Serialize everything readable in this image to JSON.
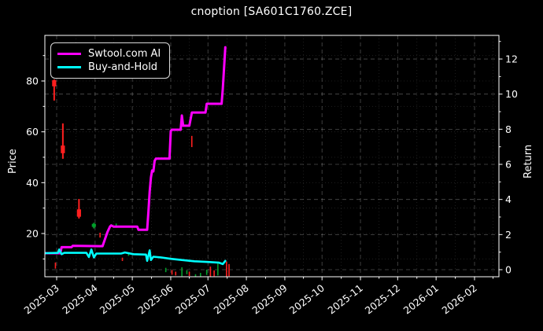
{
  "chart_data": {
    "type": "line",
    "title": "cnoption [SA601C1760.ZCE]",
    "background": "#000000",
    "text_color": "#ffffff",
    "grid": "both",
    "legend": {
      "position": "upper-left"
    },
    "x_axis": {
      "tick_labels": [
        "2025-03",
        "2025-04",
        "2025-05",
        "2025-06",
        "2025-07",
        "2025-08",
        "2025-09",
        "2025-10",
        "2025-11",
        "2025-12",
        "2026-01",
        "2026-02"
      ],
      "range": [
        "2025-02-19",
        "2026-02-19"
      ]
    },
    "y_axis_left": {
      "label": "Price",
      "ticks": [
        20,
        40,
        60,
        80
      ],
      "minor_ticks": [
        10,
        30,
        50,
        70,
        90
      ],
      "range": [
        3,
        98
      ]
    },
    "y_axis_right": {
      "label": "Return",
      "ticks": [
        0,
        2,
        4,
        6,
        8,
        10,
        12
      ],
      "minor_ticks": [
        1,
        3,
        5,
        7,
        9,
        11,
        13
      ],
      "range": [
        -0.4,
        13.34
      ]
    },
    "series": [
      {
        "name": "Swtool.com AI",
        "color": "#ff00ff",
        "axis": "right",
        "linewidth": 3,
        "points": [
          [
            "2025-02-20",
            0.94
          ],
          [
            "2025-03-04",
            0.94
          ],
          [
            "2025-03-05",
            1.28
          ],
          [
            "2025-03-13",
            1.28
          ],
          [
            "2025-03-14",
            1.36
          ],
          [
            "2025-04-07",
            1.34
          ],
          [
            "2025-04-09",
            1.75
          ],
          [
            "2025-04-11",
            2.15
          ],
          [
            "2025-04-13",
            2.46
          ],
          [
            "2025-04-14",
            2.52
          ],
          [
            "2025-04-16",
            2.45
          ],
          [
            "2025-05-05",
            2.45
          ],
          [
            "2025-05-06",
            2.27
          ],
          [
            "2025-05-13",
            2.27
          ],
          [
            "2025-05-14",
            3.3
          ],
          [
            "2025-05-15",
            4.45
          ],
          [
            "2025-05-16",
            5.25
          ],
          [
            "2025-05-17",
            5.65
          ],
          [
            "2025-05-18",
            5.6
          ],
          [
            "2025-05-19",
            6.2
          ],
          [
            "2025-05-20",
            6.33
          ],
          [
            "2025-05-31",
            6.33
          ],
          [
            "2025-06-01",
            7.9
          ],
          [
            "2025-06-02",
            7.97
          ],
          [
            "2025-06-09",
            7.97
          ],
          [
            "2025-06-10",
            8.78
          ],
          [
            "2025-06-11",
            8.2
          ],
          [
            "2025-06-16",
            8.2
          ],
          [
            "2025-06-18",
            8.95
          ],
          [
            "2025-06-29",
            8.95
          ],
          [
            "2025-06-30",
            9.45
          ],
          [
            "2025-07-12",
            9.45
          ],
          [
            "2025-07-13",
            10.3
          ],
          [
            "2025-07-15",
            12.67
          ]
        ]
      },
      {
        "name": "Buy-and-Hold",
        "color": "#00ffff",
        "axis": "right",
        "linewidth": 2.6,
        "points": [
          [
            "2025-02-20",
            0.94
          ],
          [
            "2025-03-02",
            0.96
          ],
          [
            "2025-03-03",
            1.15
          ],
          [
            "2025-03-05",
            0.88
          ],
          [
            "2025-03-07",
            0.96
          ],
          [
            "2025-03-25",
            0.96
          ],
          [
            "2025-03-27",
            0.72
          ],
          [
            "2025-03-29",
            1.15
          ],
          [
            "2025-03-31",
            0.7
          ],
          [
            "2025-04-02",
            0.92
          ],
          [
            "2025-04-22",
            0.92
          ],
          [
            "2025-04-25",
            0.98
          ],
          [
            "2025-05-02",
            0.88
          ],
          [
            "2025-05-12",
            0.86
          ],
          [
            "2025-05-13",
            0.5
          ],
          [
            "2025-05-15",
            1.1
          ],
          [
            "2025-05-16",
            0.55
          ],
          [
            "2025-05-18",
            0.74
          ],
          [
            "2025-05-24",
            0.7
          ],
          [
            "2025-06-01",
            0.62
          ],
          [
            "2025-06-10",
            0.55
          ],
          [
            "2025-06-20",
            0.48
          ],
          [
            "2025-07-01",
            0.44
          ],
          [
            "2025-07-10",
            0.4
          ],
          [
            "2025-07-13",
            0.32
          ],
          [
            "2025-07-15",
            0.5
          ]
        ]
      }
    ],
    "candles": [
      {
        "date": "2025-02-27",
        "high": 80.6,
        "low": 72.3,
        "open": 80.3,
        "close": 77.9,
        "color": "red"
      },
      {
        "date": "2025-03-06",
        "high": 63.3,
        "low": 49.4,
        "open": 54.6,
        "close": 51.6,
        "color": "red"
      },
      {
        "date": "2025-03-19",
        "high": 33.6,
        "low": 25.9,
        "open": 29.5,
        "close": 26.6,
        "color": "red"
      },
      {
        "date": "2025-03-31",
        "high": 24.2,
        "low": 22.0,
        "open": 22.6,
        "close": 23.8,
        "color": "green"
      },
      {
        "date": "2025-06-18",
        "high": 58.4,
        "low": 54.0,
        "color": "red"
      },
      {
        "date": "2025-02-28",
        "high": 8.6,
        "low": 6.2,
        "color": "red"
      },
      {
        "date": "2025-04-05",
        "high": 20.3,
        "low": 18.4,
        "color": "red"
      },
      {
        "date": "2025-04-18",
        "high": 23.9,
        "low": 22.3,
        "color": "green"
      },
      {
        "date": "2025-04-23",
        "high": 10.5,
        "low": 9.2,
        "color": "red"
      },
      {
        "date": "2025-04-28",
        "high": 12.3,
        "low": 11.2,
        "color": "green"
      },
      {
        "date": "2025-05-28",
        "high": 6.5,
        "low": 4.8,
        "color": "green"
      },
      {
        "date": "2025-06-02",
        "high": 5.6,
        "low": 3.8,
        "color": "red"
      },
      {
        "date": "2025-06-05",
        "high": 5.0,
        "low": 3.5,
        "color": "red"
      },
      {
        "date": "2025-06-10",
        "high": 6.7,
        "low": 3.2,
        "color": "green"
      },
      {
        "date": "2025-06-14",
        "high": 5.5,
        "low": 4.0,
        "color": "green"
      },
      {
        "date": "2025-06-16",
        "high": 5.0,
        "low": 3.3,
        "color": "red"
      },
      {
        "date": "2025-06-21",
        "high": 4.0,
        "low": 2.6,
        "color": "green"
      },
      {
        "date": "2025-06-25",
        "high": 4.5,
        "low": 3.0,
        "color": "green"
      },
      {
        "date": "2025-06-30",
        "high": 5.8,
        "low": 3.7,
        "color": "green"
      },
      {
        "date": "2025-07-03",
        "high": 7.0,
        "low": 2.8,
        "color": "red"
      },
      {
        "date": "2025-07-06",
        "high": 5.5,
        "low": 3.2,
        "color": "red"
      },
      {
        "date": "2025-07-09",
        "high": 8.2,
        "low": 3.5,
        "color": "green"
      },
      {
        "date": "2025-07-16",
        "high": 9.0,
        "low": 3.0,
        "color": "red"
      },
      {
        "date": "2025-07-18",
        "high": 8.0,
        "low": 3.2,
        "color": "red"
      }
    ],
    "colors": {
      "candle_up": "#00a02a",
      "candle_down": "#ff1f1f",
      "grid": "#ffffff",
      "axes_edge": "#ffffff"
    }
  }
}
